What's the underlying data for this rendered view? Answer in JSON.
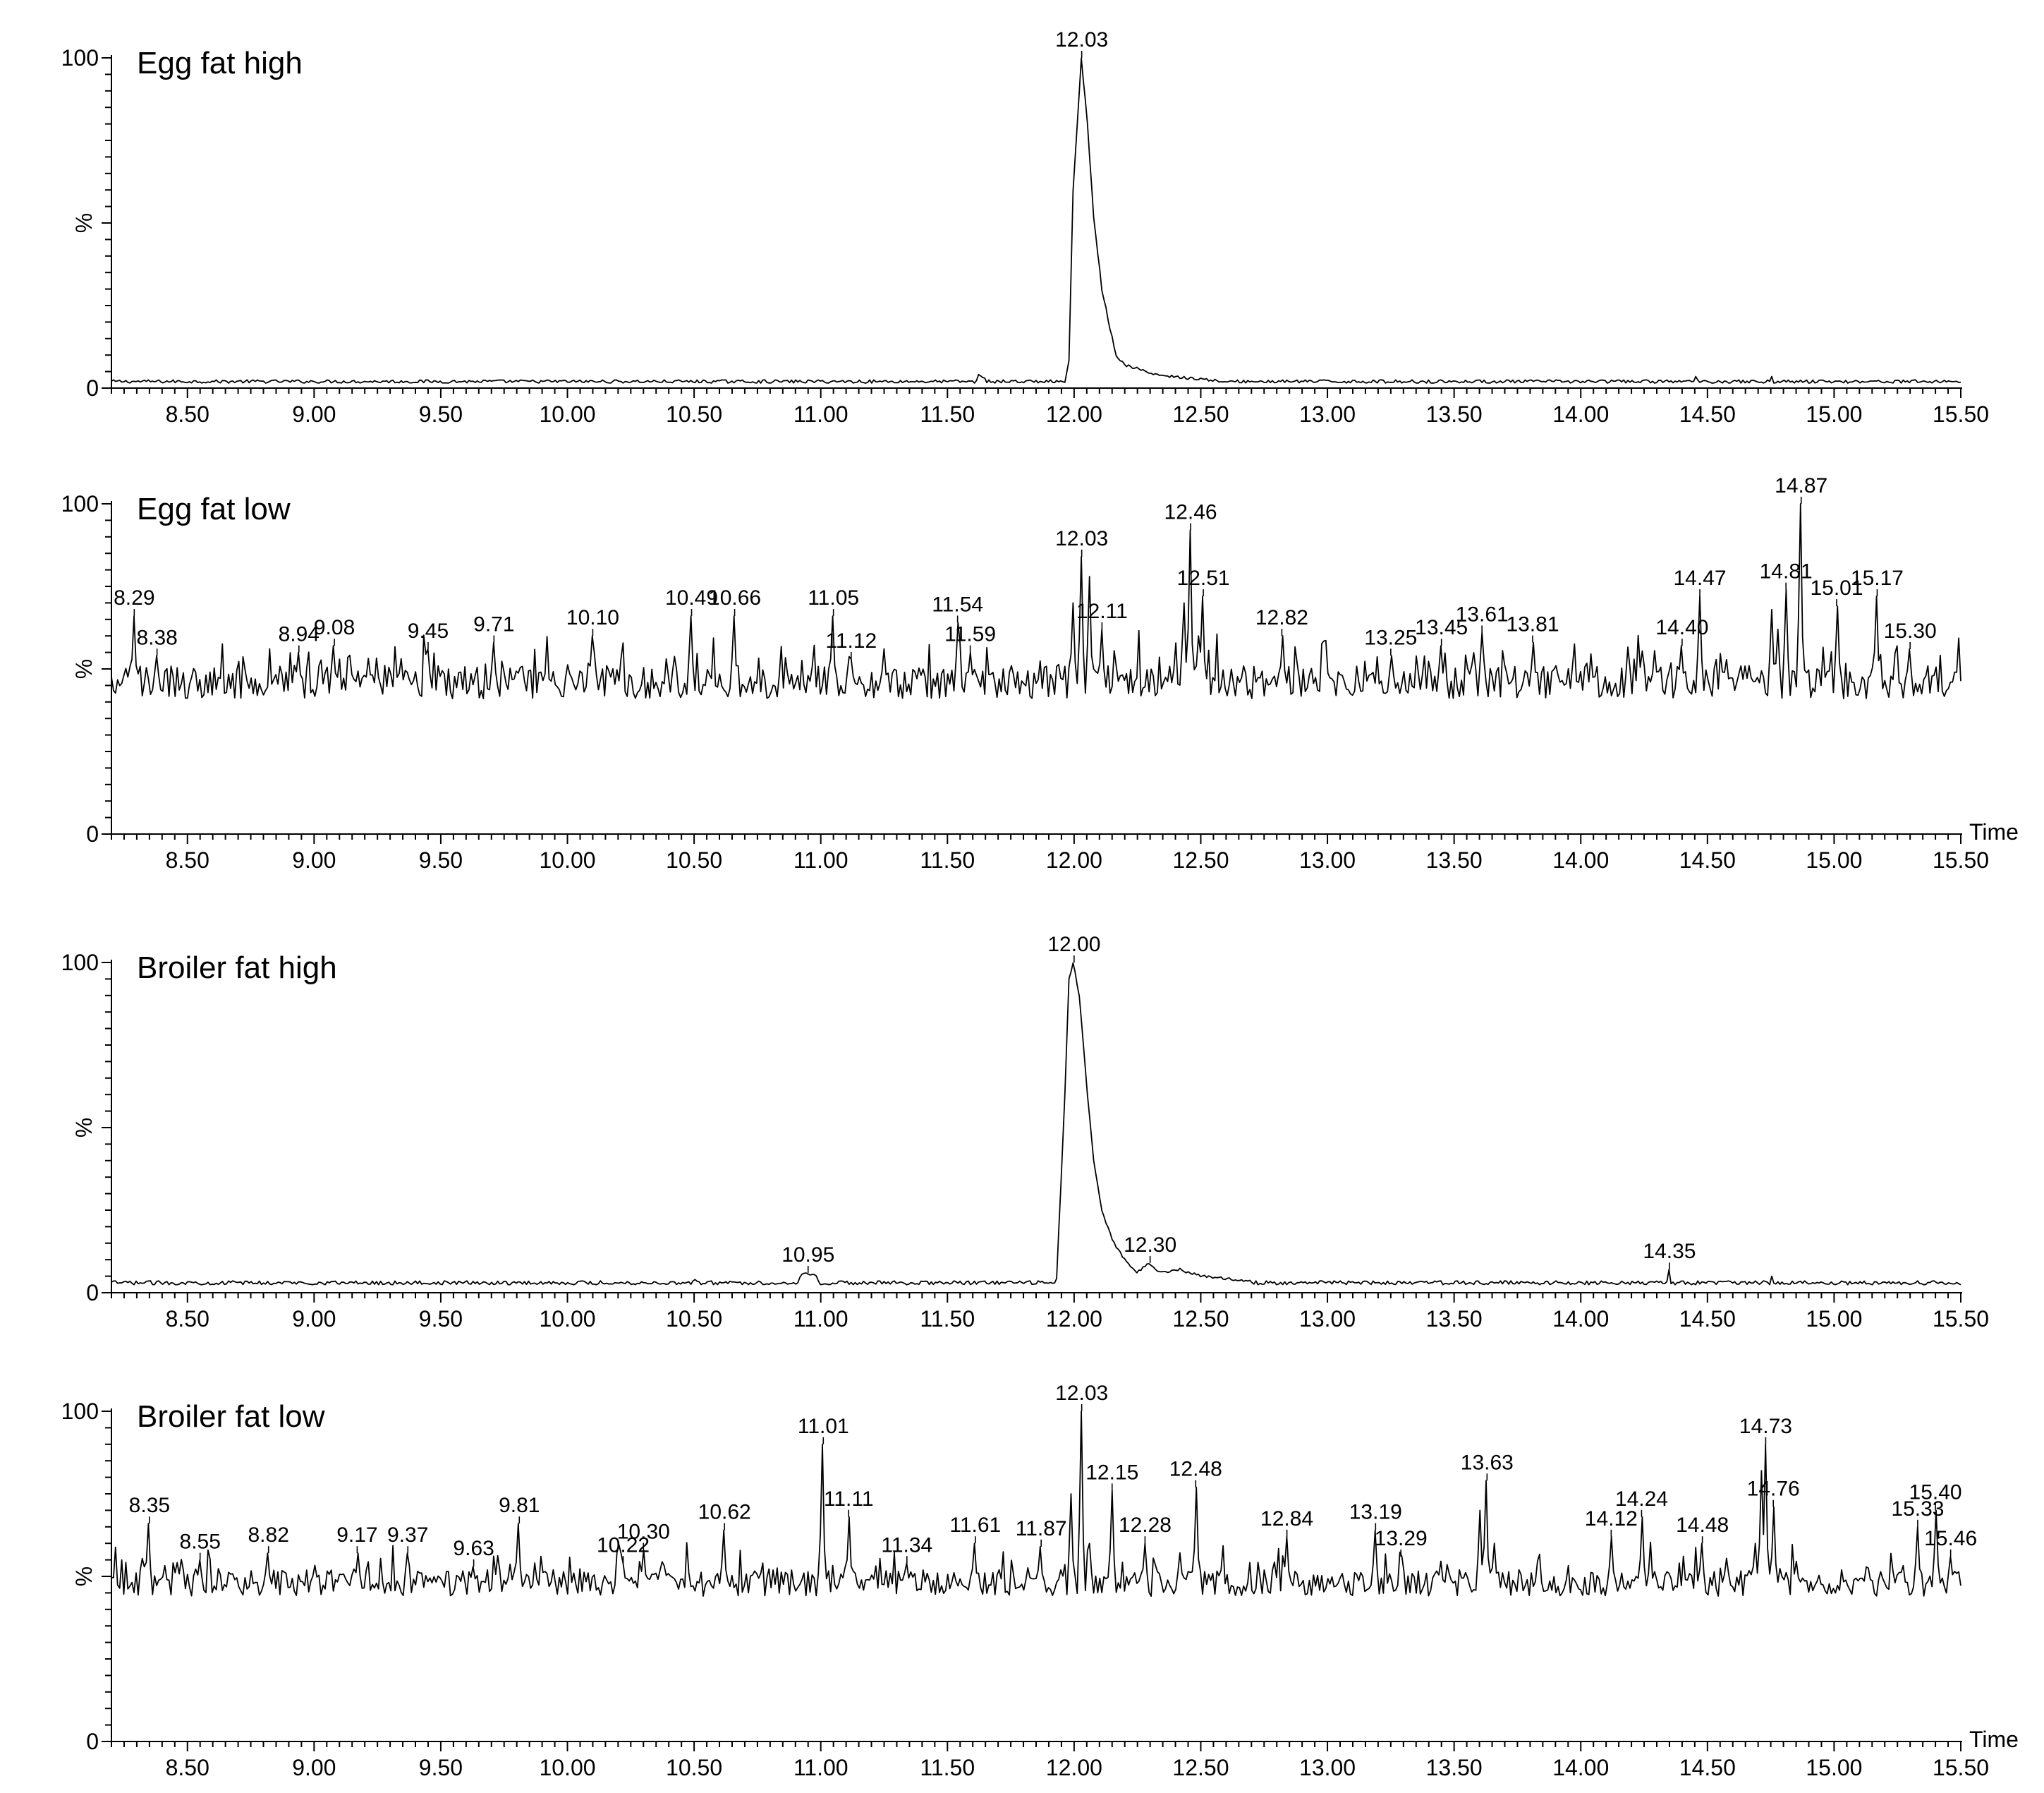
{
  "chart_data": [
    {
      "type": "line",
      "title": "Egg fat high",
      "ylabel": "%",
      "xlabel": "",
      "xlim": [
        8.2,
        15.5
      ],
      "ylim": [
        0,
        100
      ],
      "x_ticks": [
        "8.50",
        "9.00",
        "9.50",
        "10.00",
        "10.50",
        "11.00",
        "11.50",
        "12.00",
        "12.50",
        "13.00",
        "13.50",
        "14.00",
        "14.50",
        "15.00",
        "15.50"
      ],
      "y_ticks": [
        "0",
        "100"
      ],
      "baseline": 2,
      "noise": 0.5,
      "peaks": [
        {
          "x": 12.03,
          "y": 100,
          "label": "12.03"
        }
      ],
      "shape": [
        {
          "x": 11.62,
          "y": 4
        },
        {
          "x": 11.65,
          "y": 3
        },
        {
          "x": 11.96,
          "y": 2
        },
        {
          "x": 11.98,
          "y": 8
        },
        {
          "x": 12.0,
          "y": 60
        },
        {
          "x": 12.03,
          "y": 100
        },
        {
          "x": 12.05,
          "y": 80
        },
        {
          "x": 12.08,
          "y": 52
        },
        {
          "x": 12.11,
          "y": 30
        },
        {
          "x": 12.14,
          "y": 18
        },
        {
          "x": 12.17,
          "y": 10
        },
        {
          "x": 12.2,
          "y": 7
        },
        {
          "x": 12.25,
          "y": 6
        },
        {
          "x": 12.32,
          "y": 4
        },
        {
          "x": 12.45,
          "y": 3
        },
        {
          "x": 12.6,
          "y": 2
        },
        {
          "x": 14.45,
          "y": 3.5
        },
        {
          "x": 14.75,
          "y": 3.5
        }
      ]
    },
    {
      "type": "line",
      "title": "Egg fat low",
      "ylabel": "%",
      "xlabel": "Time",
      "xlim": [
        8.2,
        15.5
      ],
      "ylim": [
        0,
        100
      ],
      "x_ticks": [
        "8.50",
        "9.00",
        "9.50",
        "10.00",
        "10.50",
        "11.00",
        "11.50",
        "12.00",
        "12.50",
        "13.00",
        "13.50",
        "14.00",
        "14.50",
        "15.00",
        "15.50"
      ],
      "y_ticks": [
        "0",
        "100"
      ],
      "baseline": 46,
      "noise": 5,
      "peaks": [
        {
          "x": 8.29,
          "y": 66,
          "label": "8.29"
        },
        {
          "x": 8.38,
          "y": 54,
          "label": "8.38"
        },
        {
          "x": 8.94,
          "y": 55,
          "label": "8.94"
        },
        {
          "x": 9.08,
          "y": 57,
          "label": "9.08"
        },
        {
          "x": 9.45,
          "y": 56,
          "label": "9.45"
        },
        {
          "x": 9.71,
          "y": 58,
          "label": "9.71"
        },
        {
          "x": 10.1,
          "y": 60,
          "label": "10.10"
        },
        {
          "x": 10.49,
          "y": 66,
          "label": "10.49"
        },
        {
          "x": 10.66,
          "y": 66,
          "label": "10.66"
        },
        {
          "x": 11.05,
          "y": 66,
          "label": "11.05"
        },
        {
          "x": 11.12,
          "y": 53,
          "label": "11.12"
        },
        {
          "x": 11.54,
          "y": 64,
          "label": "11.54"
        },
        {
          "x": 11.59,
          "y": 55,
          "label": "11.59"
        },
        {
          "x": 12.03,
          "y": 84,
          "label": "12.03"
        },
        {
          "x": 12.11,
          "y": 62,
          "label": "12.11"
        },
        {
          "x": 12.46,
          "y": 92,
          "label": "12.46"
        },
        {
          "x": 12.51,
          "y": 72,
          "label": "12.51"
        },
        {
          "x": 12.82,
          "y": 60,
          "label": "12.82"
        },
        {
          "x": 13.25,
          "y": 54,
          "label": "13.25"
        },
        {
          "x": 13.45,
          "y": 57,
          "label": "13.45"
        },
        {
          "x": 13.61,
          "y": 61,
          "label": "13.61"
        },
        {
          "x": 13.81,
          "y": 58,
          "label": "13.81"
        },
        {
          "x": 14.4,
          "y": 57,
          "label": "14.40"
        },
        {
          "x": 14.47,
          "y": 72,
          "label": "14.47"
        },
        {
          "x": 14.81,
          "y": 74,
          "label": "14.81"
        },
        {
          "x": 14.87,
          "y": 100,
          "label": "14.87"
        },
        {
          "x": 15.01,
          "y": 69,
          "label": "15.01"
        },
        {
          "x": 15.17,
          "y": 72,
          "label": "15.17"
        },
        {
          "x": 15.3,
          "y": 56,
          "label": "15.30"
        }
      ],
      "shape": [
        {
          "x": 12.0,
          "y": 70
        },
        {
          "x": 12.06,
          "y": 78
        },
        {
          "x": 12.08,
          "y": 50
        },
        {
          "x": 12.43,
          "y": 70
        },
        {
          "x": 12.49,
          "y": 60
        },
        {
          "x": 14.75,
          "y": 68
        },
        {
          "x": 14.78,
          "y": 62
        }
      ]
    },
    {
      "type": "line",
      "title": "Broiler fat high",
      "ylabel": "%",
      "xlabel": "",
      "xlim": [
        8.2,
        15.5
      ],
      "ylim": [
        0,
        100
      ],
      "x_ticks": [
        "8.50",
        "9.00",
        "9.50",
        "10.00",
        "10.50",
        "11.00",
        "11.50",
        "12.00",
        "12.50",
        "13.00",
        "13.50",
        "14.00",
        "14.50",
        "15.00",
        "15.50"
      ],
      "y_ticks": [
        "0",
        "100"
      ],
      "baseline": 3,
      "noise": 0.6,
      "peaks": [
        {
          "x": 10.95,
          "y": 6,
          "label": "10.95"
        },
        {
          "x": 12.0,
          "y": 100,
          "label": "12.00"
        },
        {
          "x": 12.3,
          "y": 9,
          "label": "12.30"
        },
        {
          "x": 14.35,
          "y": 7,
          "label": "14.35"
        }
      ],
      "shape": [
        {
          "x": 10.5,
          "y": 4
        },
        {
          "x": 10.92,
          "y": 5
        },
        {
          "x": 10.98,
          "y": 5
        },
        {
          "x": 11.93,
          "y": 4
        },
        {
          "x": 11.96,
          "y": 60
        },
        {
          "x": 11.98,
          "y": 95
        },
        {
          "x": 12.0,
          "y": 100
        },
        {
          "x": 12.02,
          "y": 90
        },
        {
          "x": 12.05,
          "y": 60
        },
        {
          "x": 12.08,
          "y": 40
        },
        {
          "x": 12.11,
          "y": 25
        },
        {
          "x": 12.15,
          "y": 16
        },
        {
          "x": 12.2,
          "y": 10
        },
        {
          "x": 12.25,
          "y": 6
        },
        {
          "x": 12.34,
          "y": 6
        },
        {
          "x": 12.42,
          "y": 7
        },
        {
          "x": 12.5,
          "y": 5
        },
        {
          "x": 12.7,
          "y": 3.5
        },
        {
          "x": 14.75,
          "y": 5
        }
      ]
    },
    {
      "type": "line",
      "title": "Broiler fat low",
      "ylabel": "%",
      "xlabel": "Time",
      "xlim": [
        8.2,
        15.5
      ],
      "ylim": [
        0,
        100
      ],
      "x_ticks": [
        "8.50",
        "9.00",
        "9.50",
        "10.00",
        "10.50",
        "11.00",
        "11.50",
        "12.00",
        "12.50",
        "13.00",
        "13.50",
        "14.00",
        "14.50",
        "15.00",
        "15.50"
      ],
      "y_ticks": [
        "0",
        "100"
      ],
      "baseline": 48,
      "noise": 4,
      "peaks": [
        {
          "x": 8.35,
          "y": 66,
          "label": "8.35"
        },
        {
          "x": 8.55,
          "y": 55,
          "label": "8.55"
        },
        {
          "x": 8.82,
          "y": 57,
          "label": "8.82"
        },
        {
          "x": 9.17,
          "y": 57,
          "label": "9.17"
        },
        {
          "x": 9.37,
          "y": 57,
          "label": "9.37"
        },
        {
          "x": 9.63,
          "y": 53,
          "label": "9.63"
        },
        {
          "x": 9.81,
          "y": 66,
          "label": "9.81"
        },
        {
          "x": 10.22,
          "y": 54,
          "label": "10.22"
        },
        {
          "x": 10.3,
          "y": 58,
          "label": "10.30"
        },
        {
          "x": 10.62,
          "y": 64,
          "label": "10.62"
        },
        {
          "x": 11.01,
          "y": 90,
          "label": "11.01"
        },
        {
          "x": 11.11,
          "y": 68,
          "label": "11.11"
        },
        {
          "x": 11.34,
          "y": 54,
          "label": "11.34"
        },
        {
          "x": 11.61,
          "y": 60,
          "label": "11.61"
        },
        {
          "x": 11.87,
          "y": 59,
          "label": "11.87"
        },
        {
          "x": 12.03,
          "y": 100,
          "label": "12.03"
        },
        {
          "x": 12.15,
          "y": 76,
          "label": "12.15"
        },
        {
          "x": 12.28,
          "y": 60,
          "label": "12.28"
        },
        {
          "x": 12.48,
          "y": 77,
          "label": "12.48"
        },
        {
          "x": 12.84,
          "y": 62,
          "label": "12.84"
        },
        {
          "x": 13.19,
          "y": 64,
          "label": "13.19"
        },
        {
          "x": 13.29,
          "y": 56,
          "label": "13.29"
        },
        {
          "x": 13.63,
          "y": 79,
          "label": "13.63"
        },
        {
          "x": 14.12,
          "y": 62,
          "label": "14.12"
        },
        {
          "x": 14.24,
          "y": 68,
          "label": "14.24"
        },
        {
          "x": 14.48,
          "y": 60,
          "label": "14.48"
        },
        {
          "x": 14.73,
          "y": 90,
          "label": "14.73"
        },
        {
          "x": 14.76,
          "y": 71,
          "label": "14.76"
        },
        {
          "x": 15.33,
          "y": 65,
          "label": "15.33"
        },
        {
          "x": 15.4,
          "y": 70,
          "label": "15.40"
        },
        {
          "x": 15.46,
          "y": 56,
          "label": "15.46"
        }
      ],
      "shape": [
        {
          "x": 11.99,
          "y": 75
        },
        {
          "x": 12.06,
          "y": 60
        },
        {
          "x": 13.6,
          "y": 70
        },
        {
          "x": 13.66,
          "y": 60
        },
        {
          "x": 14.71,
          "y": 82
        },
        {
          "x": 14.69,
          "y": 60
        }
      ]
    }
  ]
}
